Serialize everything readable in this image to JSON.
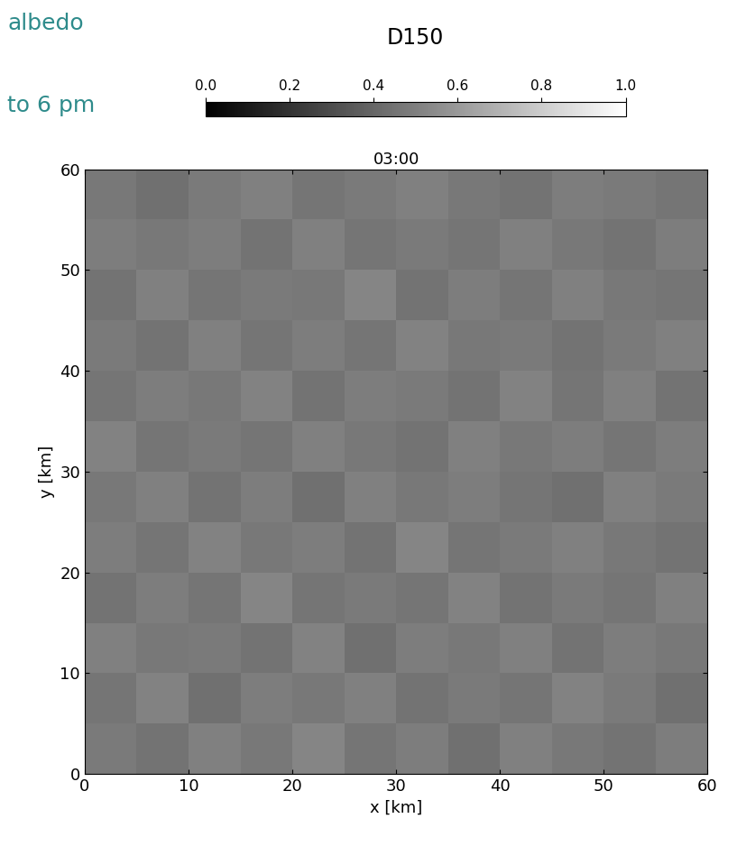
{
  "chart_data": {
    "type": "heatmap",
    "title": "D150",
    "subtitle": "03:00",
    "annotations": [
      "albedo",
      "to 6 pm"
    ],
    "xlabel": "x [km]",
    "ylabel": "y [km]",
    "xlim": [
      0,
      60
    ],
    "ylim": [
      0,
      60
    ],
    "xticks": [
      0,
      10,
      20,
      30,
      40,
      50,
      60
    ],
    "yticks": [
      0,
      10,
      20,
      30,
      40,
      50,
      60
    ],
    "color": "gray",
    "cells": [
      [
        0.48,
        0.45,
        0.5,
        0.47,
        0.52,
        0.46,
        0.49,
        0.44,
        0.5,
        0.47,
        0.45,
        0.49
      ],
      [
        0.46,
        0.51,
        0.44,
        0.49,
        0.47,
        0.5,
        0.45,
        0.48,
        0.46,
        0.51,
        0.48,
        0.44
      ],
      [
        0.5,
        0.47,
        0.48,
        0.45,
        0.51,
        0.44,
        0.49,
        0.47,
        0.5,
        0.45,
        0.49,
        0.47
      ],
      [
        0.45,
        0.49,
        0.46,
        0.52,
        0.46,
        0.48,
        0.46,
        0.51,
        0.45,
        0.48,
        0.46,
        0.5
      ],
      [
        0.49,
        0.46,
        0.51,
        0.47,
        0.49,
        0.45,
        0.52,
        0.46,
        0.48,
        0.5,
        0.47,
        0.45
      ],
      [
        0.47,
        0.5,
        0.45,
        0.49,
        0.44,
        0.5,
        0.47,
        0.49,
        0.46,
        0.44,
        0.5,
        0.48
      ],
      [
        0.51,
        0.46,
        0.48,
        0.46,
        0.5,
        0.47,
        0.45,
        0.5,
        0.47,
        0.49,
        0.46,
        0.49
      ],
      [
        0.46,
        0.49,
        0.47,
        0.51,
        0.45,
        0.49,
        0.48,
        0.45,
        0.51,
        0.46,
        0.5,
        0.45
      ],
      [
        0.48,
        0.45,
        0.5,
        0.46,
        0.49,
        0.46,
        0.51,
        0.47,
        0.48,
        0.45,
        0.48,
        0.5
      ],
      [
        0.45,
        0.5,
        0.46,
        0.48,
        0.47,
        0.52,
        0.45,
        0.49,
        0.46,
        0.5,
        0.47,
        0.46
      ],
      [
        0.49,
        0.47,
        0.49,
        0.45,
        0.5,
        0.46,
        0.48,
        0.46,
        0.5,
        0.47,
        0.45,
        0.49
      ],
      [
        0.47,
        0.44,
        0.48,
        0.5,
        0.46,
        0.48,
        0.5,
        0.47,
        0.45,
        0.49,
        0.48,
        0.46
      ]
    ],
    "colorbar": {
      "range": [
        0.0,
        1.0
      ],
      "ticks": [
        0.0,
        0.2,
        0.4,
        0.6,
        0.8,
        1.0
      ]
    }
  }
}
